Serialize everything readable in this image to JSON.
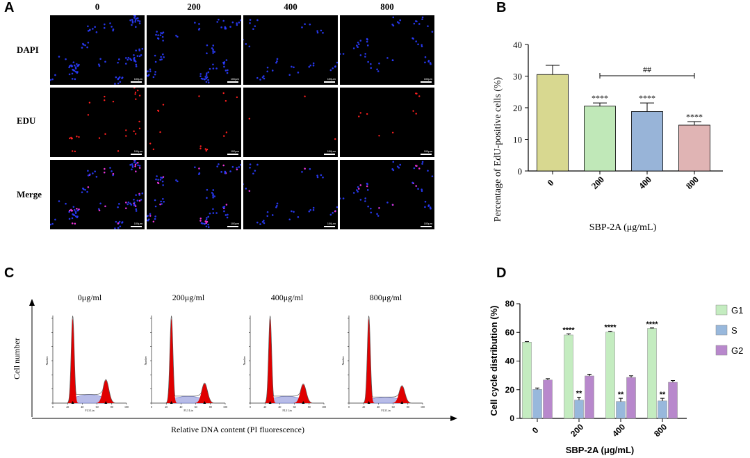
{
  "panels": {
    "A": "A",
    "B": "B",
    "C": "C",
    "D": "D"
  },
  "panel_a": {
    "columns": [
      "0",
      "200",
      "400",
      "800"
    ],
    "rows": [
      "DAPI",
      "EDU",
      "Merge"
    ],
    "scale_bar": "100μm"
  },
  "panel_c": {
    "samples": [
      "0μg/ml",
      "200μg/ml",
      "400μg/ml",
      "800μg/ml"
    ],
    "y_label": "Cell number",
    "x_label": "Relative DNA content (PI fluorescence)",
    "inner_x_label": "FL3 Lin",
    "inner_y_label": "Number",
    "colors": {
      "peak": "#e00000",
      "s_phase": "#b8bce8",
      "outline": "#555555"
    }
  },
  "chart_data": [
    {
      "type": "bar",
      "categories": [
        "0",
        "200",
        "400",
        "800"
      ],
      "values": [
        30.5,
        20.5,
        18.8,
        14.5
      ],
      "errors": [
        2.9,
        1.0,
        2.7,
        1.1
      ],
      "significance": [
        "",
        "****",
        "****",
        "****"
      ],
      "bracket": {
        "from": "200",
        "to": "800",
        "label": "##"
      },
      "xlabel": "SBP-2A (μg/mL)",
      "ylabel": "Percentage of EdU-positive cells (%)",
      "ylim": [
        0,
        40
      ],
      "yticks": [
        0,
        10,
        20,
        30,
        40
      ],
      "colors": [
        "#d8d890",
        "#c0e8b8",
        "#98b4d8",
        "#e0b4b4"
      ]
    },
    {
      "type": "bar",
      "categories": [
        "0",
        "200",
        "400",
        "800"
      ],
      "series": [
        {
          "name": "G1",
          "values": [
            53.2,
            58.2,
            60.2,
            62.8
          ],
          "errors": [
            0.4,
            0.8,
            0.6,
            0.3
          ],
          "significance": [
            "",
            "****",
            "****",
            "****"
          ],
          "color": "#c4ecc0"
        },
        {
          "name": "S",
          "values": [
            20.2,
            12.8,
            11.8,
            12.2
          ],
          "errors": [
            1.0,
            2.0,
            2.2,
            1.8
          ],
          "significance": [
            "",
            "**",
            "**",
            "**"
          ],
          "color": "#98b8dc"
        },
        {
          "name": "G2",
          "values": [
            26.8,
            29.6,
            28.6,
            25.2
          ],
          "errors": [
            0.9,
            1.2,
            1.1,
            1.2
          ],
          "significance": [
            "",
            "",
            "",
            ""
          ],
          "color": "#b888cc"
        }
      ],
      "xlabel": "SBP-2A  (μg/mL)",
      "ylabel": "Cell cycle distribution (%)",
      "ylim": [
        0,
        80
      ],
      "yticks": [
        0,
        20,
        40,
        60,
        80
      ],
      "legend": "right"
    }
  ]
}
